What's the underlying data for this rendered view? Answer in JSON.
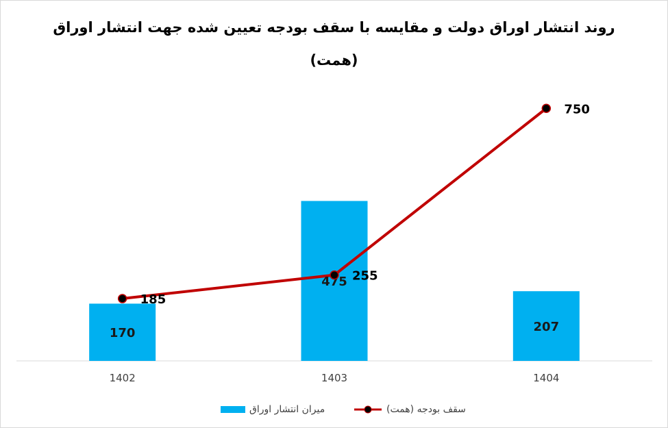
{
  "chart_data": {
    "type": "bar+line",
    "title": "روند انتشار اوراق دولت و مقایسه با سقف بودجه تعیین شده جهت انتشار اوراق",
    "subtitle": "(همت)",
    "categories": [
      "1402",
      "1403",
      "1404"
    ],
    "series": [
      {
        "name": "میران انتشار اوراق",
        "type": "bar",
        "color": "#00b0f0",
        "values": [
          170,
          475,
          207
        ]
      },
      {
        "name": "سقف بودجه (همت)",
        "type": "line",
        "color": "#c00000",
        "marker_color": "#000000",
        "values": [
          185,
          255,
          750
        ]
      }
    ],
    "ylim": [
      0,
      840
    ],
    "grid": false,
    "legend": "bottom"
  }
}
